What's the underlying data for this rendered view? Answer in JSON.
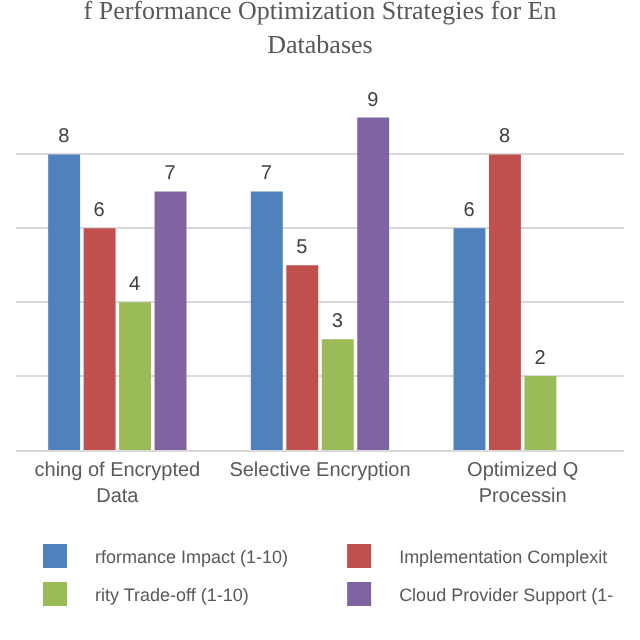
{
  "chart_data": {
    "type": "bar",
    "title": "f Performance Optimization Strategies for En\nDatabases",
    "categories": [
      "ching of Encrypted\nData",
      "Selective Encryption",
      "Optimized Q\nProcessin"
    ],
    "series": [
      {
        "name": "rformance Impact (1-10)",
        "color": "#4f81bd",
        "values": [
          8,
          7,
          6
        ]
      },
      {
        "name": "Implementation Complexit",
        "color": "#c0504d",
        "values": [
          6,
          5,
          8
        ]
      },
      {
        "name": "rity Trade-off (1-10)",
        "color": "#9bbb59",
        "values": [
          4,
          3,
          2
        ]
      },
      {
        "name": "Cloud Provider Support (1-",
        "color": "#8064a2",
        "values": [
          7,
          9,
          null
        ]
      }
    ],
    "yticks": [
      {
        "value": 0,
        "label": null
      },
      {
        "value": 2,
        "label": null
      },
      {
        "value": 4,
        "label": null
      },
      {
        "value": 6,
        "label": null
      },
      {
        "value": 8,
        "label": null
      }
    ],
    "grid": "y",
    "legend": "bottom",
    "data_labels": true,
    "tick_labels": "x"
  }
}
